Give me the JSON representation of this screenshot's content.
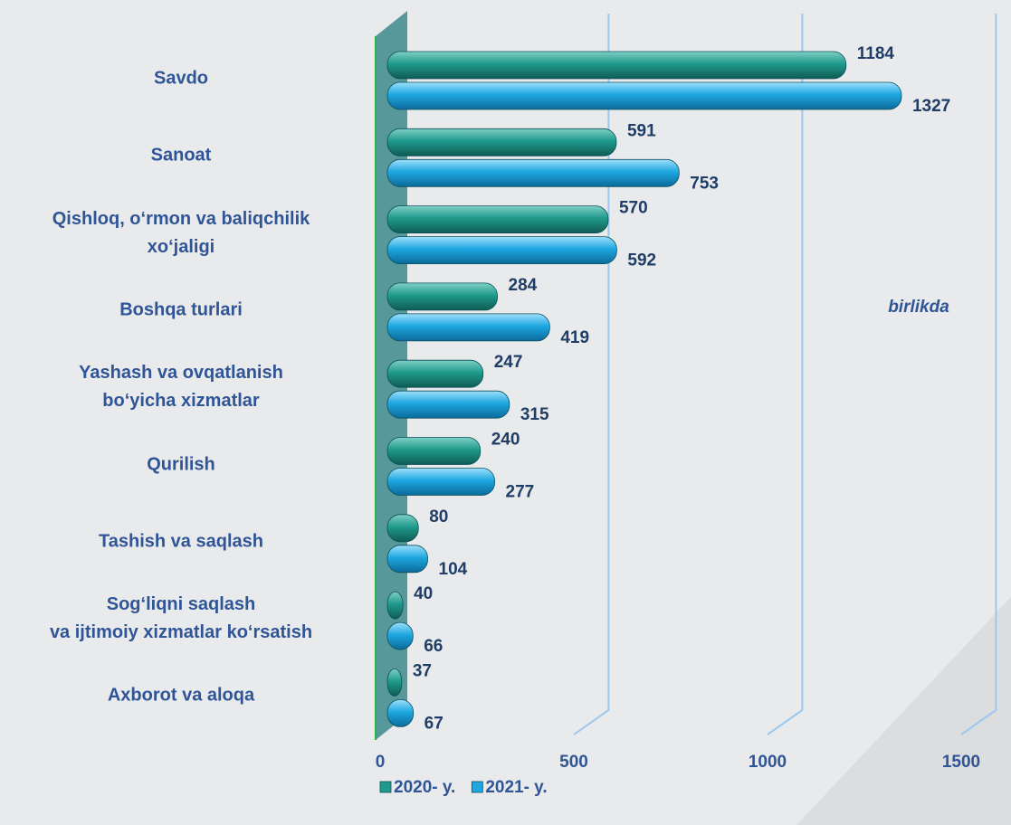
{
  "chart_data": {
    "type": "bar",
    "orientation": "horizontal",
    "categories": [
      "Savdo",
      "Sanoat",
      "Qishloq, o‘rmon va baliqchilik\nxo‘jaligi",
      "Boshqa turlari",
      "Yashash va ovqatlanish\nbo‘yicha xizmatlar",
      "Qurilish",
      "Tashish va saqlash",
      "Sog‘liqni saqlash\nva ijtimoiy xizmatlar ko‘rsatish",
      "Axborot va aloqa"
    ],
    "series": [
      {
        "name": "2020- y.",
        "color": "#1f9a8c",
        "values": [
          1184,
          591,
          570,
          284,
          247,
          240,
          80,
          40,
          37
        ]
      },
      {
        "name": "2021- y.",
        "color": "#1ea7e1",
        "values": [
          1327,
          753,
          592,
          419,
          315,
          277,
          104,
          66,
          67
        ]
      }
    ],
    "xlim": [
      0,
      1500
    ],
    "xticks": [
      0,
      500,
      1000,
      1500
    ],
    "grid": true,
    "annotation": "birlikda",
    "legend": "bottom"
  }
}
